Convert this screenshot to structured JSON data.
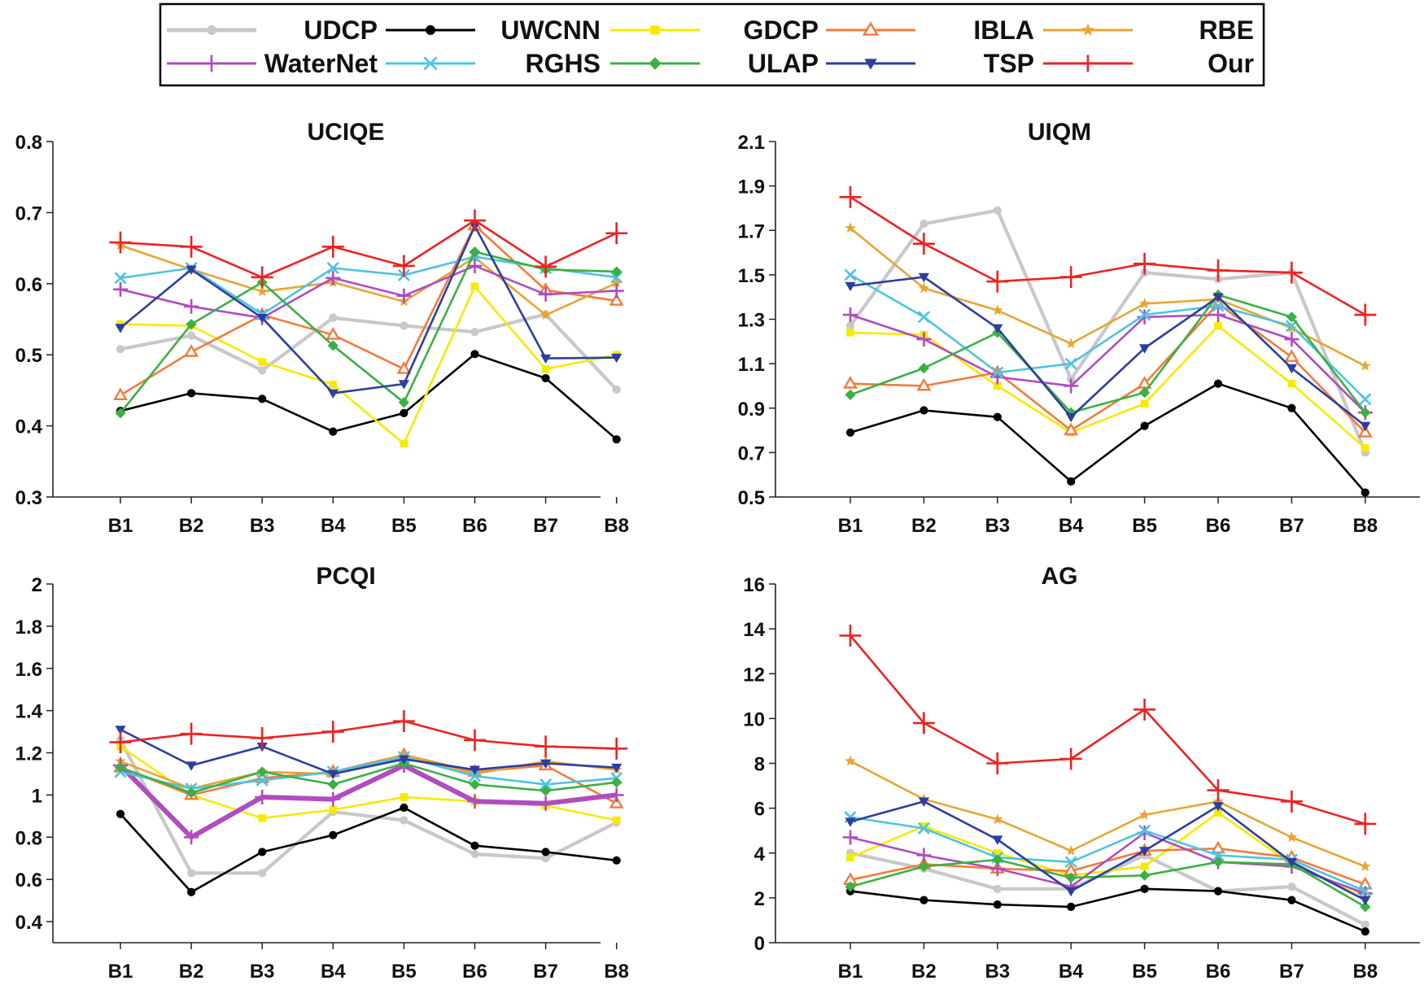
{
  "legend": {
    "items": [
      {
        "name": "UDCP",
        "color": "#c8c8c8",
        "marker": "circle"
      },
      {
        "name": "UWCNN",
        "color": "#000000",
        "marker": "circle"
      },
      {
        "name": "GDCP",
        "color": "#f5ea00",
        "marker": "square"
      },
      {
        "name": "IBLA",
        "color": "#f47a3a",
        "marker": "triangle"
      },
      {
        "name": "RBE",
        "color": "#e8a530",
        "marker": "star"
      },
      {
        "name": "WaterNet",
        "color": "#b04cc0",
        "marker": "plus"
      },
      {
        "name": "RGHS",
        "color": "#4ec3e0",
        "marker": "x"
      },
      {
        "name": "ULAP",
        "color": "#3cb043",
        "marker": "diamond"
      },
      {
        "name": "TSP",
        "color": "#2b3fa0",
        "marker": "tri-down"
      },
      {
        "name": "Our",
        "color": "#ee2222",
        "marker": "plus"
      }
    ]
  },
  "chart_data": [
    {
      "type": "line",
      "title": "UCIQE",
      "categories": [
        "B1",
        "B2",
        "B3",
        "B4",
        "B5",
        "B6",
        "B7",
        "B8"
      ],
      "ylim": [
        0.3,
        0.8
      ],
      "yticks": [
        0.3,
        0.4,
        0.5,
        0.6,
        0.7,
        0.8
      ],
      "ytick_labels": [
        "0.3",
        "0.4",
        "0.5",
        "0.6",
        "0.7",
        "0.8"
      ],
      "series": [
        {
          "name": "UDCP",
          "values": [
            0.508,
            0.527,
            0.478,
            0.552,
            0.541,
            0.532,
            0.557,
            0.451
          ]
        },
        {
          "name": "UWCNN",
          "values": [
            0.421,
            0.446,
            0.438,
            0.392,
            0.418,
            0.501,
            0.467,
            0.381
          ]
        },
        {
          "name": "GDCP",
          "values": [
            0.543,
            0.541,
            0.49,
            0.458,
            0.375,
            0.596,
            0.48,
            0.5
          ]
        },
        {
          "name": "IBLA",
          "values": [
            0.443,
            0.504,
            0.556,
            0.528,
            0.48,
            0.682,
            0.591,
            0.576
          ]
        },
        {
          "name": "RBE",
          "values": [
            0.654,
            0.62,
            0.589,
            0.602,
            0.575,
            0.637,
            0.556,
            0.601
          ]
        },
        {
          "name": "WaterNet",
          "values": [
            0.592,
            0.568,
            0.552,
            0.608,
            0.583,
            0.625,
            0.585,
            0.59
          ]
        },
        {
          "name": "RGHS",
          "values": [
            0.608,
            0.622,
            0.557,
            0.622,
            0.612,
            0.638,
            0.622,
            0.609
          ]
        },
        {
          "name": "ULAP",
          "values": [
            0.418,
            0.543,
            0.602,
            0.513,
            0.433,
            0.645,
            0.62,
            0.617
          ]
        },
        {
          "name": "TSP",
          "values": [
            0.538,
            0.62,
            0.552,
            0.446,
            0.459,
            0.681,
            0.495,
            0.496
          ]
        },
        {
          "name": "Our",
          "values": [
            0.658,
            0.652,
            0.609,
            0.652,
            0.625,
            0.689,
            0.624,
            0.671
          ]
        }
      ]
    },
    {
      "type": "line",
      "title": "UIQM",
      "categories": [
        "B1",
        "B2",
        "B3",
        "B4",
        "B5",
        "B6",
        "B7",
        "B8"
      ],
      "ylim": [
        0.5,
        2.1
      ],
      "yticks": [
        0.5,
        0.7,
        0.9,
        1.1,
        1.3,
        1.5,
        1.7,
        1.9,
        2.1
      ],
      "ytick_labels": [
        "0.5",
        "0.7",
        "0.9",
        "1.1",
        "1.3",
        "1.5",
        "1.7",
        "1.9",
        "2.1"
      ],
      "series": [
        {
          "name": "UDCP",
          "values": [
            1.27,
            1.73,
            1.79,
            1.03,
            1.51,
            1.48,
            1.51,
            0.7
          ]
        },
        {
          "name": "UWCNN",
          "values": [
            0.79,
            0.89,
            0.86,
            0.57,
            0.82,
            1.01,
            0.9,
            0.52
          ]
        },
        {
          "name": "GDCP",
          "values": [
            1.24,
            1.23,
            1.0,
            0.79,
            0.92,
            1.27,
            1.01,
            0.72
          ]
        },
        {
          "name": "IBLA",
          "values": [
            1.01,
            1.0,
            1.06,
            0.8,
            1.01,
            1.37,
            1.13,
            0.79
          ]
        },
        {
          "name": "RBE",
          "values": [
            1.71,
            1.44,
            1.34,
            1.19,
            1.37,
            1.39,
            1.26,
            1.09
          ]
        },
        {
          "name": "WaterNet",
          "values": [
            1.32,
            1.21,
            1.04,
            1.0,
            1.31,
            1.32,
            1.21,
            0.88
          ]
        },
        {
          "name": "RGHS",
          "values": [
            1.5,
            1.31,
            1.06,
            1.1,
            1.32,
            1.36,
            1.27,
            0.94
          ]
        },
        {
          "name": "ULAP",
          "values": [
            0.96,
            1.08,
            1.24,
            0.88,
            0.97,
            1.41,
            1.31,
            0.88
          ]
        },
        {
          "name": "TSP",
          "values": [
            1.45,
            1.49,
            1.26,
            0.86,
            1.17,
            1.4,
            1.08,
            0.82
          ]
        },
        {
          "name": "Our",
          "values": [
            1.85,
            1.64,
            1.47,
            1.49,
            1.55,
            1.52,
            1.51,
            1.32
          ]
        }
      ]
    },
    {
      "type": "line",
      "title": "PCQI",
      "categories": [
        "B1",
        "B2",
        "B3",
        "B4",
        "B5",
        "B6",
        "B7",
        "B8"
      ],
      "ylim": [
        0.3,
        2.0
      ],
      "yticks": [
        0.4,
        0.6,
        0.8,
        1.0,
        1.2,
        1.4,
        1.6,
        1.8,
        2.0
      ],
      "ytick_labels": [
        "0.4",
        "0.6",
        "0.8",
        "1",
        "1.2",
        "1.4",
        "1.6",
        "1.8",
        "2"
      ],
      "series": [
        {
          "name": "UDCP",
          "values": [
            1.26,
            0.63,
            0.63,
            0.92,
            0.88,
            0.72,
            0.7,
            0.87
          ]
        },
        {
          "name": "UWCNN",
          "values": [
            0.91,
            0.54,
            0.73,
            0.81,
            0.94,
            0.76,
            0.73,
            0.69
          ]
        },
        {
          "name": "GDCP",
          "values": [
            1.23,
            1.0,
            0.89,
            0.93,
            0.99,
            0.97,
            0.95,
            0.88
          ]
        },
        {
          "name": "IBLA",
          "values": [
            1.13,
            1.0,
            1.08,
            1.11,
            1.19,
            1.11,
            1.14,
            0.96
          ]
        },
        {
          "name": "RBE",
          "values": [
            1.16,
            1.03,
            1.11,
            1.1,
            1.19,
            1.1,
            1.16,
            1.12
          ]
        },
        {
          "name": "WaterNet",
          "values": [
            1.14,
            0.8,
            0.99,
            0.98,
            1.14,
            0.97,
            0.96,
            1.0
          ]
        },
        {
          "name": "RGHS",
          "values": [
            1.11,
            1.03,
            1.07,
            1.11,
            1.18,
            1.09,
            1.05,
            1.08
          ]
        },
        {
          "name": "ULAP",
          "values": [
            1.13,
            1.01,
            1.11,
            1.05,
            1.15,
            1.05,
            1.02,
            1.06
          ]
        },
        {
          "name": "TSP",
          "values": [
            1.31,
            1.14,
            1.23,
            1.1,
            1.17,
            1.12,
            1.15,
            1.13
          ]
        },
        {
          "name": "Our",
          "values": [
            1.25,
            1.29,
            1.27,
            1.3,
            1.35,
            1.26,
            1.23,
            1.22
          ]
        }
      ]
    },
    {
      "type": "line",
      "title": "AG",
      "categories": [
        "B1",
        "B2",
        "B3",
        "B4",
        "B5",
        "B6",
        "B7",
        "B8"
      ],
      "ylim": [
        0,
        16
      ],
      "yticks": [
        0,
        2,
        4,
        6,
        8,
        10,
        12,
        14,
        16
      ],
      "ytick_labels": [
        "0",
        "2",
        "4",
        "6",
        "8",
        "10",
        "12",
        "14",
        "16"
      ],
      "series": [
        {
          "name": "UDCP",
          "values": [
            4.0,
            3.3,
            2.4,
            2.4,
            3.9,
            2.3,
            2.5,
            0.8
          ]
        },
        {
          "name": "UWCNN",
          "values": [
            2.3,
            1.9,
            1.7,
            1.6,
            2.4,
            2.3,
            1.9,
            0.5
          ]
        },
        {
          "name": "GDCP",
          "values": [
            3.8,
            5.2,
            4.0,
            3.0,
            3.4,
            5.8,
            3.5,
            2.1
          ]
        },
        {
          "name": "IBLA",
          "values": [
            2.8,
            3.5,
            3.3,
            3.2,
            4.1,
            4.2,
            3.8,
            2.6
          ]
        },
        {
          "name": "RBE",
          "values": [
            8.1,
            6.4,
            5.5,
            4.1,
            5.7,
            6.3,
            4.7,
            3.4
          ]
        },
        {
          "name": "WaterNet",
          "values": [
            4.7,
            3.9,
            3.3,
            2.5,
            4.9,
            3.6,
            3.4,
            2.2
          ]
        },
        {
          "name": "RGHS",
          "values": [
            5.6,
            5.1,
            3.8,
            3.6,
            5.0,
            3.9,
            3.7,
            2.3
          ]
        },
        {
          "name": "ULAP",
          "values": [
            2.5,
            3.4,
            3.7,
            2.9,
            3.0,
            3.6,
            3.5,
            1.6
          ]
        },
        {
          "name": "TSP",
          "values": [
            5.4,
            6.3,
            4.6,
            2.3,
            4.1,
            6.1,
            3.6,
            1.9
          ]
        },
        {
          "name": "Our",
          "values": [
            13.7,
            9.8,
            8.0,
            8.2,
            10.4,
            6.8,
            6.3,
            5.3
          ]
        }
      ]
    }
  ]
}
